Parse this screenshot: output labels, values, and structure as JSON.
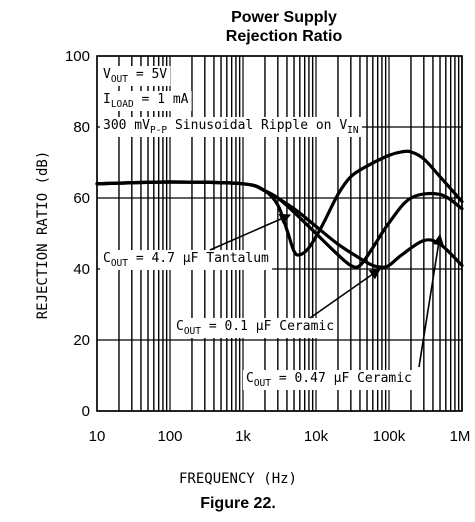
{
  "chart_data": {
    "type": "line",
    "title_line1": "Power Supply",
    "title_line2": "Rejection Ratio",
    "xlabel": "FREQUENCY (Hz)",
    "ylabel": "REJECTION RATIO (dB)",
    "x_scale": "log",
    "xlim": [
      10,
      1000000
    ],
    "ylim": [
      0,
      100
    ],
    "grid": true,
    "x_ticks": [
      "10",
      "100",
      "1k",
      "10k",
      "100k",
      "1M"
    ],
    "y_ticks": [
      "0",
      "20",
      "40",
      "60",
      "80",
      "100"
    ],
    "conditions": [
      {
        "main": "V",
        "sub": "OUT",
        "rest": " = 5V"
      },
      {
        "main": "I",
        "sub": "LOAD",
        "rest": " = 1 mA"
      },
      {
        "main": "300 mV",
        "sub": "P-P",
        "rest": " Sinusoidal Ripple on V",
        "sub2": "IN"
      }
    ],
    "series": [
      {
        "name": "C_OUT = 4.7 µF Tantalum",
        "label_main": "C",
        "label_sub": "OUT",
        "label_rest": " = 4.7 µF Tantalum",
        "x": [
          10,
          100,
          1000,
          2000,
          3000,
          4000,
          5000,
          6000,
          8000,
          12000,
          20000,
          30000,
          50000,
          100000,
          150000,
          200000,
          300000,
          500000,
          1000000
        ],
        "y": [
          64,
          64.5,
          64,
          62,
          58,
          51,
          45,
          44,
          46,
          52,
          61,
          66,
          69,
          72,
          73,
          73,
          71,
          66,
          59
        ]
      },
      {
        "name": "C_OUT = 0.1 µF Ceramic",
        "label_main": "C",
        "label_sub": "OUT",
        "label_rest": " = 0.1 µF Ceramic",
        "x": [
          10,
          100,
          1000,
          2000,
          3000,
          5000,
          10000,
          20000,
          30000,
          40000,
          60000,
          100000,
          200000,
          500000,
          1000000
        ],
        "y": [
          64,
          64.5,
          64,
          62,
          60,
          56,
          50,
          44,
          41,
          41,
          46,
          53,
          60,
          61,
          57
        ]
      },
      {
        "name": "C_OUT = 0.47 µF Ceramic",
        "label_main": "C",
        "label_sub": "OUT",
        "label_rest": " = 0.47 µF Ceramic",
        "x": [
          10,
          100,
          1000,
          2000,
          5000,
          10000,
          20000,
          40000,
          60000,
          80000,
          100000,
          150000,
          300000,
          500000,
          1000000
        ],
        "y": [
          64,
          64.5,
          64,
          62,
          57,
          52,
          47,
          43,
          41,
          40.5,
          41,
          44,
          48,
          47,
          41
        ]
      }
    ],
    "caption": "Figure 22."
  }
}
